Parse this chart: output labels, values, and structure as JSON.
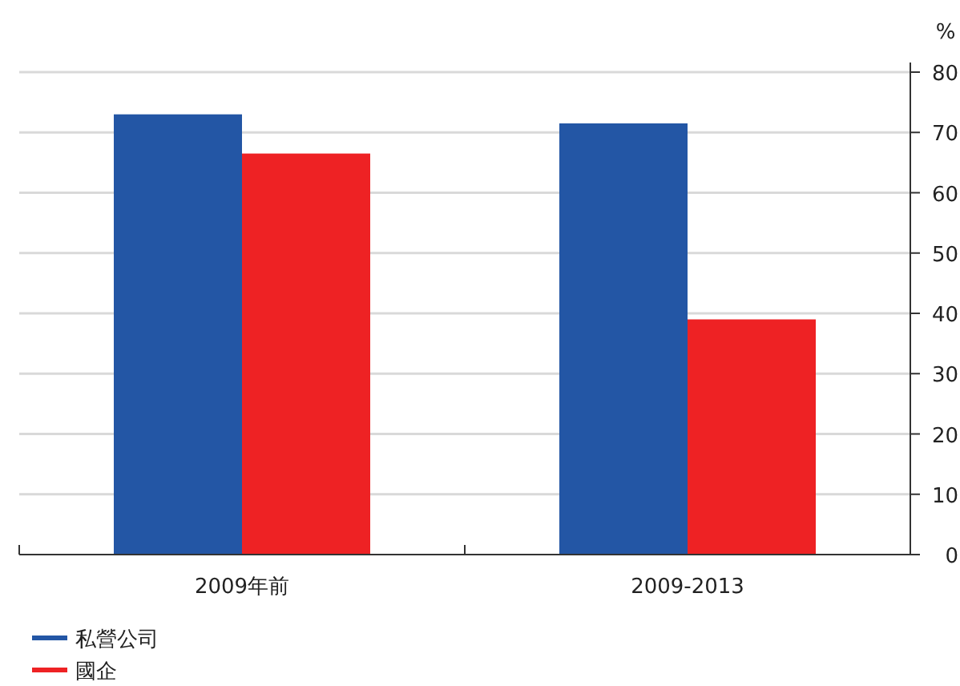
{
  "chart_data": {
    "type": "bar",
    "categories": [
      "2009年前",
      "2009-2013"
    ],
    "series": [
      {
        "name": "私營公司",
        "color": "#2356a5",
        "values": [
          73,
          71.5
        ]
      },
      {
        "name": "國企",
        "color": "#ee2224",
        "values": [
          66.5,
          39
        ]
      }
    ],
    "ylabel": "%",
    "ylim": [
      0,
      80
    ],
    "yticks": [
      0,
      10,
      20,
      30,
      40,
      50,
      60,
      70,
      80
    ],
    "grid": "y",
    "legend": "bottom left"
  }
}
